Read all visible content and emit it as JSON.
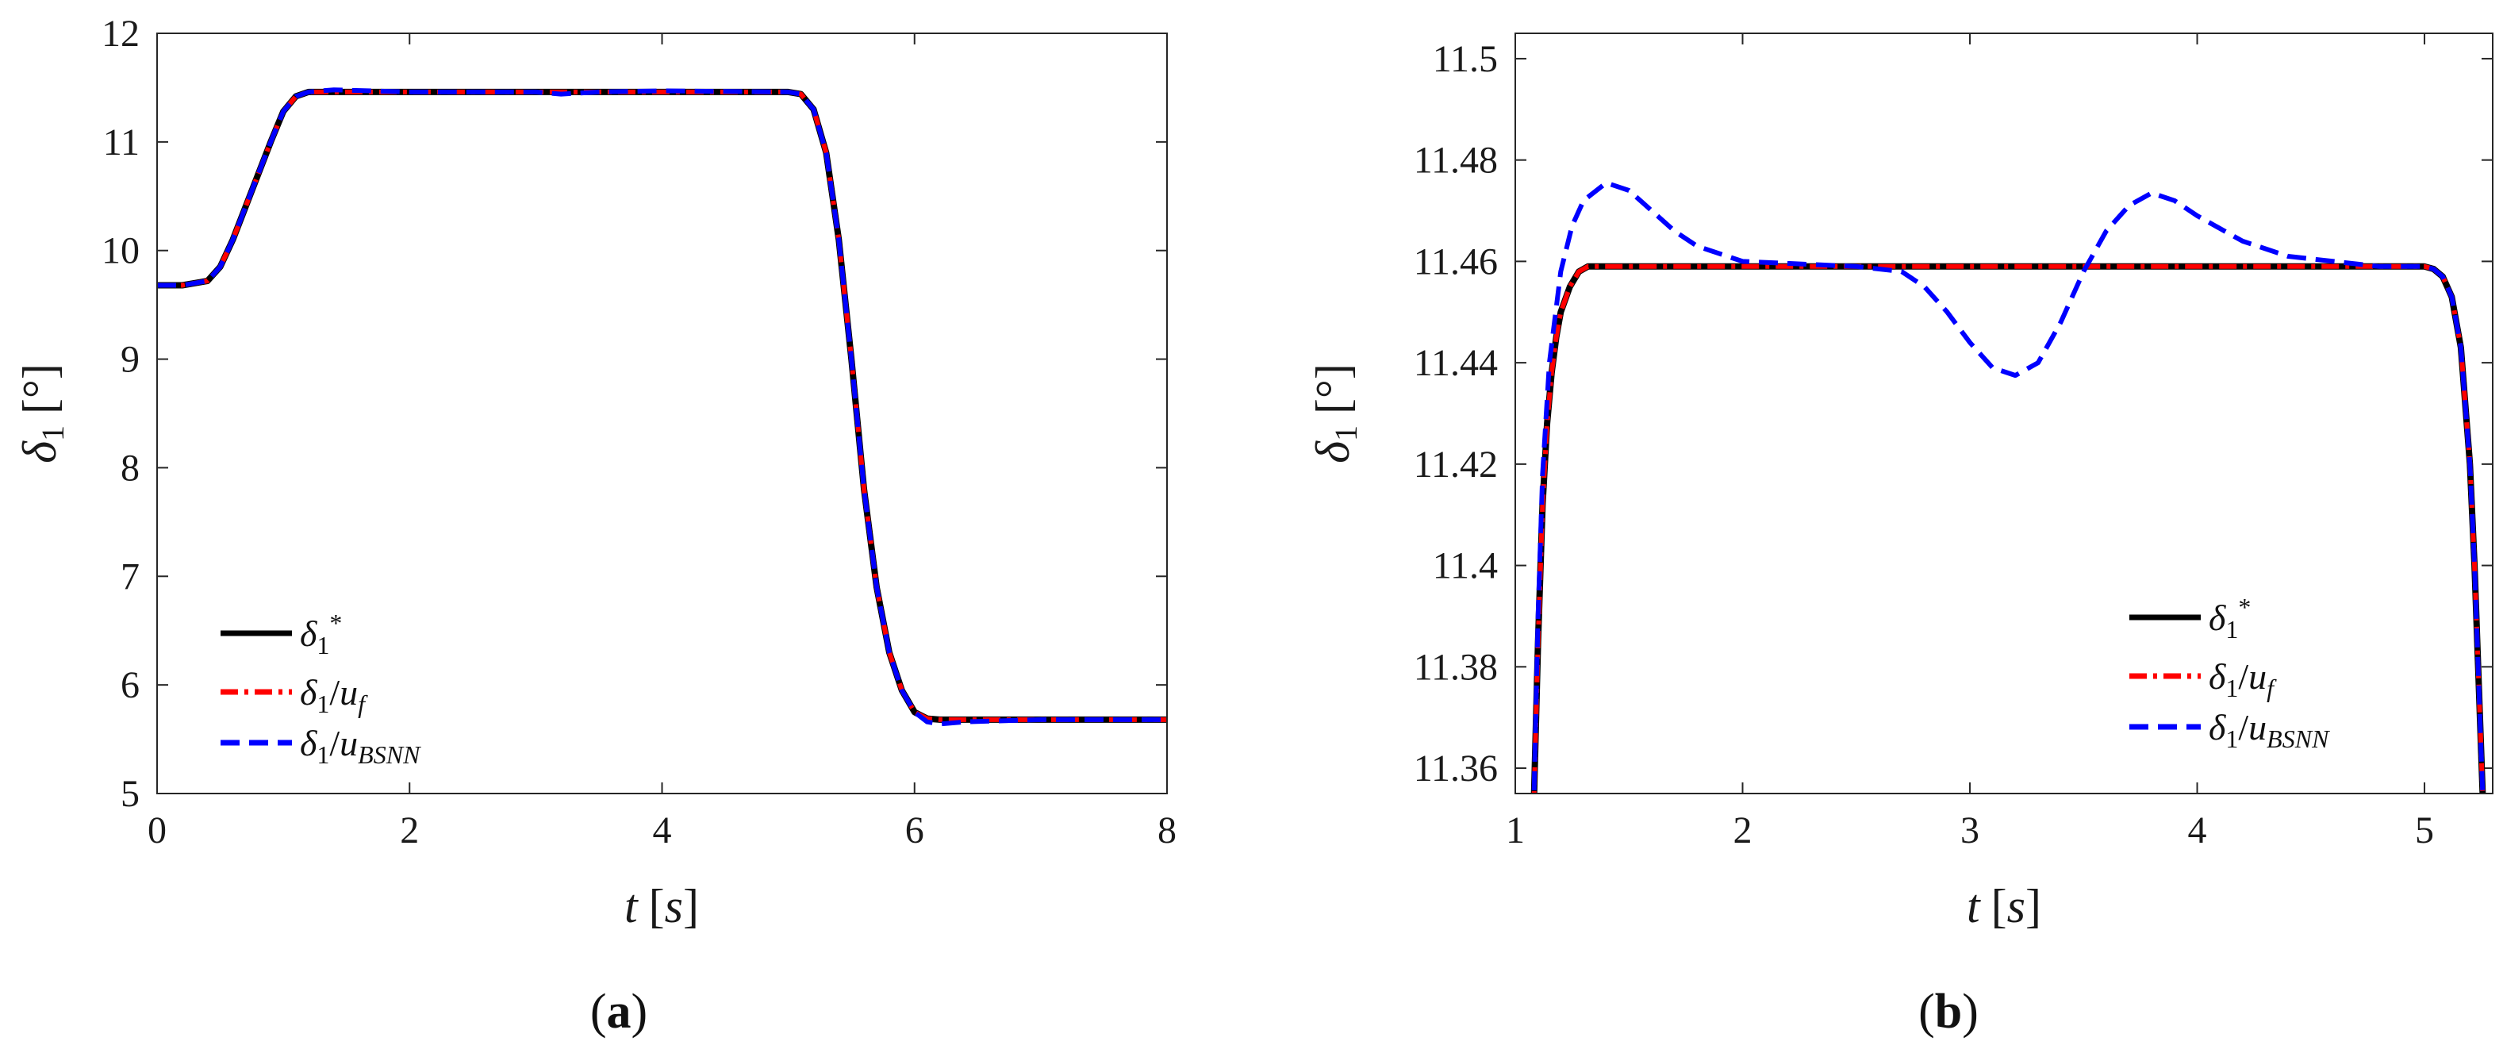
{
  "chart_data": [
    {
      "type": "line",
      "panel_label": {
        "open": "(",
        "letter": "a",
        "close": ")"
      },
      "xlabel": {
        "symbol": "t",
        "unit_open": "[",
        "unit": "s",
        "unit_close": "]"
      },
      "ylabel": {
        "symbol": "δ",
        "subscript": "1",
        "unit_open": "[",
        "unit": "°",
        "unit_close": "]"
      },
      "xlim": [
        0,
        8
      ],
      "ylim": [
        5,
        12
      ],
      "xticks": [
        "0",
        "2",
        "4",
        "6",
        "8"
      ],
      "yticks": [
        "5",
        "6",
        "7",
        "8",
        "9",
        "10",
        "11",
        "12"
      ],
      "grid": false,
      "legend_position": "bottom-left",
      "series": [
        {
          "name": "δ1*",
          "label": {
            "base": "δ",
            "sub": "1",
            "sup": "*"
          },
          "color": "#000000",
          "style": "solid",
          "x": [
            0,
            0.2,
            0.4,
            0.5,
            0.6,
            0.7,
            0.8,
            0.9,
            1.0,
            1.1,
            1.2,
            1.3,
            2.0,
            3.0,
            4.0,
            5.0,
            5.1,
            5.2,
            5.3,
            5.4,
            5.5,
            5.6,
            5.7,
            5.8,
            5.9,
            6.0,
            6.1,
            6.2,
            7.0,
            8.0
          ],
          "y": [
            9.68,
            9.68,
            9.72,
            9.85,
            10.1,
            10.4,
            10.7,
            11.0,
            11.28,
            11.42,
            11.46,
            11.46,
            11.46,
            11.46,
            11.46,
            11.46,
            11.44,
            11.3,
            10.9,
            10.1,
            9.0,
            7.8,
            6.9,
            6.3,
            5.95,
            5.75,
            5.69,
            5.68,
            5.68,
            5.68
          ]
        },
        {
          "name": "δ1/uf",
          "label": {
            "base": "δ",
            "sub": "1",
            "slash": "/",
            "var": "u",
            "varsub": "f"
          },
          "color": "#ff0000",
          "style": "dashdot",
          "x": [
            0,
            0.2,
            0.4,
            0.5,
            0.6,
            0.7,
            0.8,
            0.9,
            1.0,
            1.1,
            1.2,
            1.3,
            2.0,
            3.0,
            4.0,
            5.0,
            5.1,
            5.2,
            5.3,
            5.4,
            5.5,
            5.6,
            5.7,
            5.8,
            5.9,
            6.0,
            6.1,
            6.2,
            7.0,
            8.0
          ],
          "y": [
            9.68,
            9.68,
            9.72,
            9.85,
            10.1,
            10.4,
            10.7,
            11.0,
            11.28,
            11.42,
            11.46,
            11.46,
            11.46,
            11.46,
            11.46,
            11.46,
            11.44,
            11.3,
            10.9,
            10.1,
            9.0,
            7.8,
            6.9,
            6.3,
            5.95,
            5.75,
            5.69,
            5.68,
            5.68,
            5.68
          ]
        },
        {
          "name": "δ1/uBSNN",
          "label": {
            "base": "δ",
            "sub": "1",
            "slash": "/",
            "var": "u",
            "varsub": "BSNN"
          },
          "color": "#0000ff",
          "style": "dashed",
          "x": [
            0,
            0.2,
            0.4,
            0.5,
            0.6,
            0.7,
            0.8,
            0.9,
            1.0,
            1.1,
            1.2,
            1.4,
            2.0,
            3.0,
            3.2,
            3.5,
            4.0,
            5.0,
            5.1,
            5.2,
            5.3,
            5.4,
            5.5,
            5.6,
            5.7,
            5.8,
            5.9,
            6.0,
            6.1,
            6.2,
            6.4,
            7.0,
            8.0
          ],
          "y": [
            9.68,
            9.68,
            9.72,
            9.85,
            10.1,
            10.4,
            10.7,
            11.0,
            11.28,
            11.42,
            11.46,
            11.48,
            11.46,
            11.46,
            11.44,
            11.46,
            11.47,
            11.46,
            11.44,
            11.3,
            10.9,
            10.1,
            9.0,
            7.8,
            6.9,
            6.3,
            5.95,
            5.75,
            5.66,
            5.64,
            5.66,
            5.68,
            5.68
          ]
        }
      ]
    },
    {
      "type": "line",
      "panel_label": {
        "open": "(",
        "letter": "b",
        "close": ")"
      },
      "xlabel": {
        "symbol": "t",
        "unit_open": "[",
        "unit": "s",
        "unit_close": "]"
      },
      "ylabel": {
        "symbol": "δ",
        "subscript": "1",
        "unit_open": "[",
        "unit": "°",
        "unit_close": "]"
      },
      "xlim": [
        1,
        5.3
      ],
      "ylim": [
        11.355,
        11.505
      ],
      "xticks": [
        "1",
        "2",
        "3",
        "4",
        "5"
      ],
      "yticks": [
        "11.36",
        "11.38",
        "11.4",
        "11.42",
        "11.44",
        "11.46",
        "11.48",
        "11.5"
      ],
      "grid": false,
      "legend_position": "bottom-right",
      "series": [
        {
          "name": "δ1*",
          "label": {
            "base": "δ",
            "sub": "1",
            "sup": "*"
          },
          "color": "#000000",
          "style": "solid",
          "x": [
            1.08,
            1.1,
            1.12,
            1.14,
            1.16,
            1.18,
            1.2,
            1.24,
            1.28,
            1.32,
            1.4,
            2.0,
            3.0,
            4.0,
            5.0,
            5.04,
            5.08,
            5.12,
            5.16,
            5.2,
            5.22,
            5.24,
            5.26
          ],
          "y": [
            11.35,
            11.385,
            11.412,
            11.428,
            11.438,
            11.445,
            11.45,
            11.455,
            11.458,
            11.459,
            11.459,
            11.459,
            11.459,
            11.459,
            11.459,
            11.4585,
            11.457,
            11.453,
            11.443,
            11.42,
            11.4,
            11.375,
            11.35
          ]
        },
        {
          "name": "δ1/uf",
          "label": {
            "base": "δ",
            "sub": "1",
            "slash": "/",
            "var": "u",
            "varsub": "f"
          },
          "color": "#ff0000",
          "style": "dashdot",
          "x": [
            1.08,
            1.1,
            1.12,
            1.14,
            1.16,
            1.18,
            1.2,
            1.24,
            1.28,
            1.32,
            1.4,
            2.0,
            3.0,
            4.0,
            5.0,
            5.04,
            5.08,
            5.12,
            5.16,
            5.2,
            5.22,
            5.24,
            5.26
          ],
          "y": [
            11.35,
            11.385,
            11.412,
            11.428,
            11.438,
            11.445,
            11.45,
            11.455,
            11.458,
            11.459,
            11.459,
            11.459,
            11.459,
            11.459,
            11.459,
            11.4585,
            11.457,
            11.453,
            11.443,
            11.42,
            11.4,
            11.375,
            11.35
          ]
        },
        {
          "name": "δ1/uBSNN",
          "label": {
            "base": "δ",
            "sub": "1",
            "slash": "/",
            "var": "u",
            "varsub": "BSNN"
          },
          "color": "#0000ff",
          "style": "dashed",
          "x": [
            1.08,
            1.1,
            1.12,
            1.15,
            1.2,
            1.25,
            1.3,
            1.4,
            1.5,
            1.6,
            1.7,
            1.8,
            2.0,
            2.5,
            2.7,
            2.8,
            2.9,
            3.0,
            3.1,
            3.2,
            3.3,
            3.4,
            3.5,
            3.6,
            3.7,
            3.8,
            3.9,
            4.0,
            4.2,
            4.4,
            4.6,
            4.8,
            5.0,
            5.04,
            5.08,
            5.12,
            5.16,
            5.2,
            5.22,
            5.24,
            5.26
          ],
          "y": [
            11.35,
            11.39,
            11.418,
            11.44,
            11.458,
            11.467,
            11.472,
            11.4755,
            11.474,
            11.47,
            11.466,
            11.463,
            11.46,
            11.459,
            11.458,
            11.455,
            11.45,
            11.444,
            11.439,
            11.4375,
            11.44,
            11.448,
            11.458,
            11.466,
            11.471,
            11.4735,
            11.472,
            11.469,
            11.464,
            11.461,
            11.46,
            11.459,
            11.459,
            11.4585,
            11.457,
            11.453,
            11.443,
            11.42,
            11.4,
            11.375,
            11.35
          ]
        }
      ]
    }
  ]
}
